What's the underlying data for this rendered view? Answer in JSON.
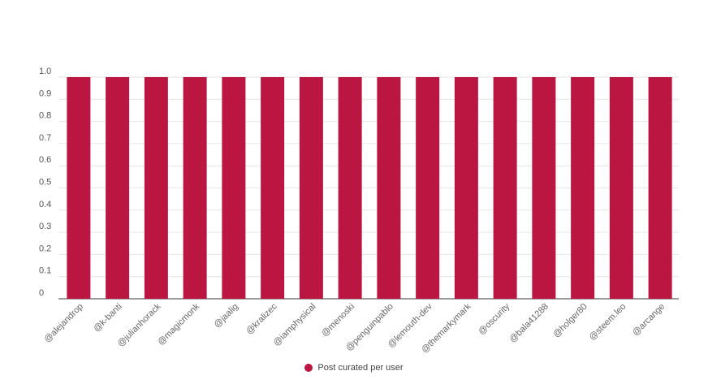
{
  "chart_data": {
    "type": "bar",
    "categories": [
      "@alejandrop",
      "@k-banti",
      "@julianhorack",
      "@magicmonk",
      "@jaalig",
      "@kralizec",
      "@iamphysical",
      "@menoski",
      "@penguinpablo",
      "@lemouth-dev",
      "@themarkymark",
      "@oscurity",
      "@bala41288",
      "@holger80",
      "@steem.leo",
      "@arcange"
    ],
    "series": [
      {
        "name": "Post curated per user",
        "values": [
          1,
          1,
          1,
          1,
          1,
          1,
          1,
          1,
          1,
          1,
          1,
          1,
          1,
          1,
          1,
          1
        ],
        "color": "#bb1541"
      }
    ],
    "ylim": [
      0,
      1.0
    ],
    "yticks": [
      "0",
      "0.1",
      "0.2",
      "0.3",
      "0.4",
      "0.5",
      "0.6",
      "0.7",
      "0.8",
      "0.9",
      "1.0"
    ],
    "grid": true,
    "legend_position": "bottom-center"
  }
}
